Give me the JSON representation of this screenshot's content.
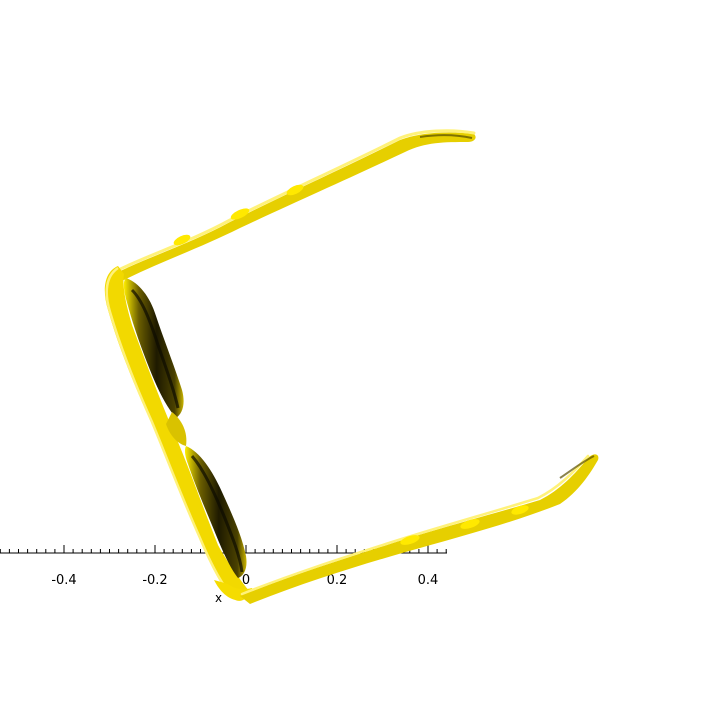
{
  "axis": {
    "name": "x",
    "major_ticks": [
      -0.4,
      -0.2,
      0,
      0.2,
      0.4
    ],
    "major_tick_labels": [
      "-0.4",
      "-0.2",
      "0",
      "0.2",
      "0.4"
    ],
    "minor_step": 0.02,
    "range": [
      -0.54,
      0.44
    ]
  },
  "colors": {
    "background": "#ffffff",
    "surface_light": "#ffee00",
    "surface_mid": "#e8d000",
    "surface_highlight": "#fff27a",
    "surface_shadow": "#3a3300",
    "surface_deep_shadow": "#141100",
    "axis": "#000000"
  },
  "object": {
    "shape": "eyeglasses-frame-isosurface",
    "view": "top-down 3d render"
  }
}
